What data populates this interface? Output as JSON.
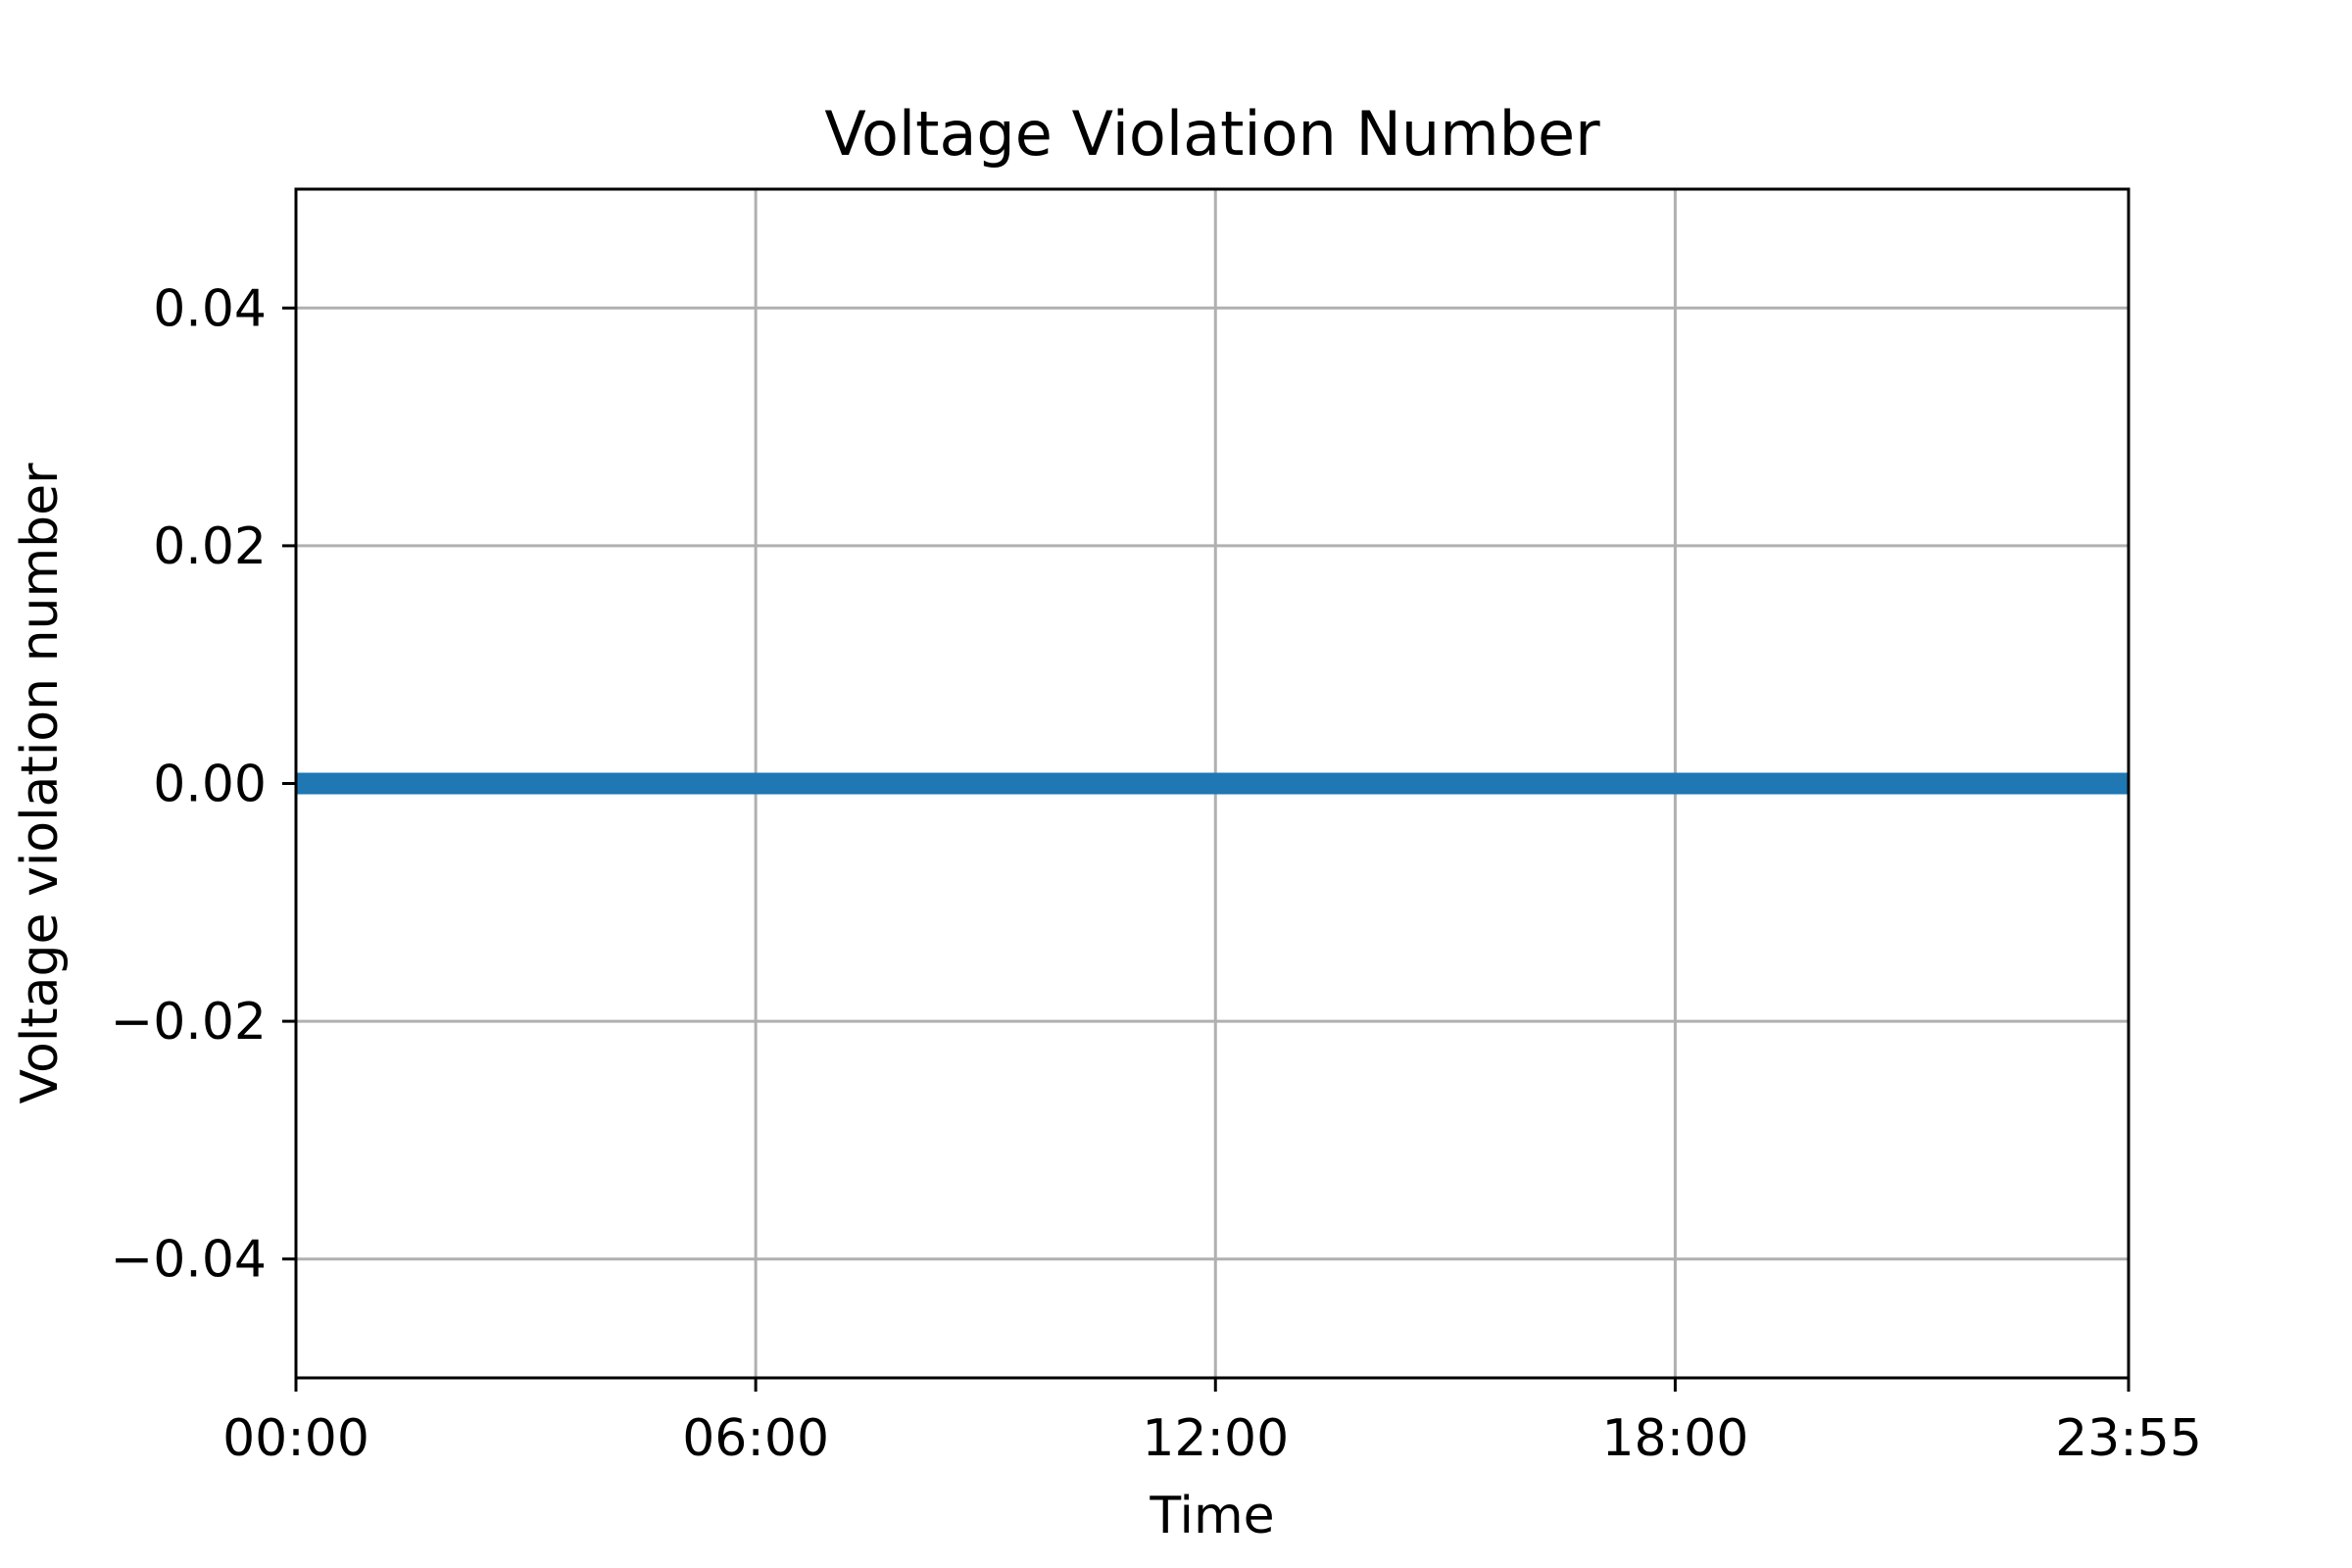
{
  "chart_data": {
    "type": "line",
    "title": "Voltage Violation Number",
    "xlabel": "Time",
    "ylabel": "Voltage violation number",
    "x_start": "00:00",
    "x_end": "23:55",
    "x_step_minutes": 5,
    "x_ticks": [
      "00:00",
      "06:00",
      "12:00",
      "18:00",
      "23:55"
    ],
    "y_ticks": [
      -0.04,
      -0.02,
      0.0,
      0.02,
      0.04
    ],
    "y_tick_labels": [
      "−0.04",
      "−0.02",
      "0.00",
      "0.02",
      "0.04"
    ],
    "ylim": [
      -0.05,
      0.05
    ],
    "grid": true,
    "series": [
      {
        "color": "#1f77b4",
        "constant_value": 0
      }
    ]
  }
}
